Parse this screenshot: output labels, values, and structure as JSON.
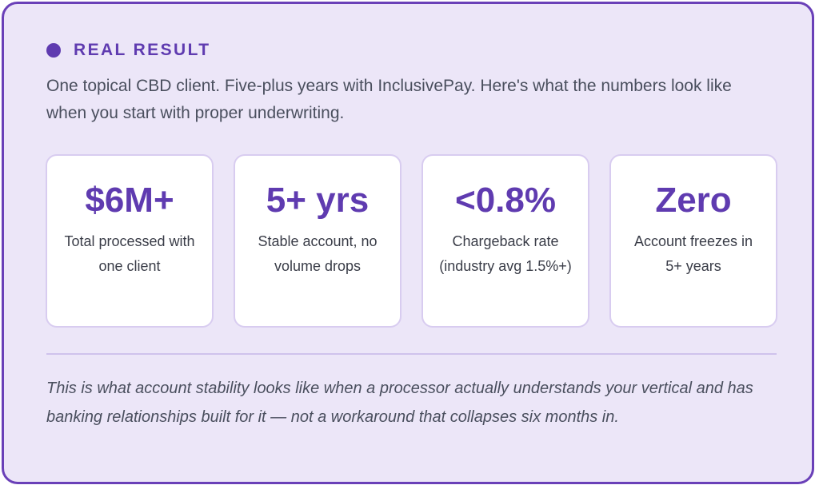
{
  "eyebrow": "REAL RESULT",
  "intro": "One topical CBD client. Five-plus years with InclusivePay. Here's what the numbers look like when you start with proper underwriting.",
  "stats": [
    {
      "value": "$6M+",
      "label": "Total processed with one client"
    },
    {
      "value": "5+ yrs",
      "label": "Stable account, no volume drops"
    },
    {
      "value": "<0.8%",
      "label": "Chargeback rate (industry avg 1.5%+)"
    },
    {
      "value": "Zero",
      "label": "Account freezes in 5+ years"
    }
  ],
  "footnote": "This is what account stability looks like when a processor actually understands your vertical and has banking relationships built for it — not a workaround that collapses six months in.",
  "colors": {
    "accent": "#5f3bb0",
    "border": "#6a40b8",
    "background": "#ece6f8"
  }
}
